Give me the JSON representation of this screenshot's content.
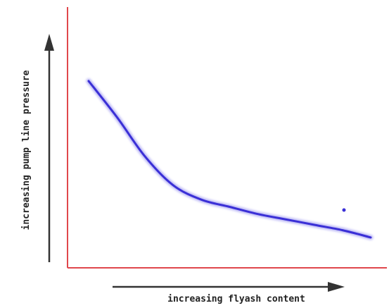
{
  "chart_data": {
    "type": "line",
    "title": "",
    "xlabel": "increasing flyash content",
    "ylabel": "increasing pump line pressure",
    "x_ticks": "none",
    "y_ticks": "none",
    "grid": false,
    "legend": "none",
    "colors": {
      "curve": "#3a2fd6",
      "axes": "#e0474c",
      "arrows": "#333333"
    },
    "series": [
      {
        "x": [
          0.0,
          0.1,
          0.2,
          0.3,
          0.4,
          0.5,
          0.6,
          0.7,
          0.8,
          0.9,
          1.0
        ],
        "y": [
          1.0,
          0.8,
          0.58,
          0.42,
          0.34,
          0.3,
          0.26,
          0.23,
          0.2,
          0.17,
          0.13
        ]
      }
    ],
    "xlim": [
      0,
      1
    ],
    "ylim": [
      0,
      1.2
    ]
  }
}
